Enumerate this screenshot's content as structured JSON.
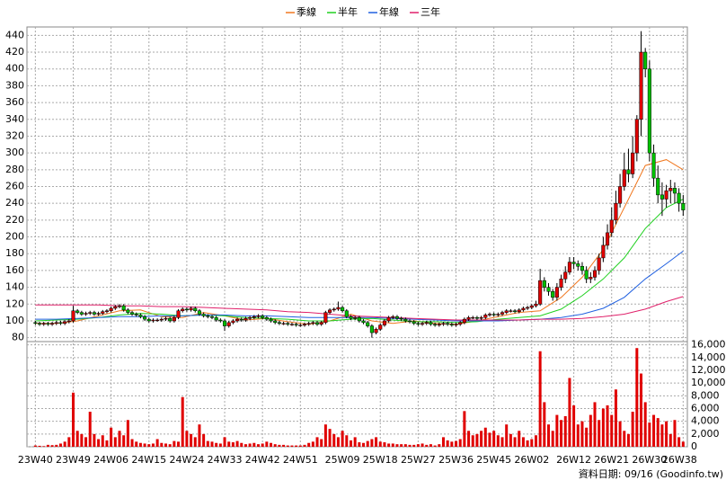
{
  "chart_data": {
    "type": "candlestick",
    "footer": "資料日期: 09/16 (Goodinfo.tw)",
    "xlim": [
      -2,
      155
    ],
    "xticks": [
      {
        "value": 0,
        "label": "23W40"
      },
      {
        "value": 9,
        "label": "23W49"
      },
      {
        "value": 18,
        "label": "24W06"
      },
      {
        "value": 27,
        "label": "24W15"
      },
      {
        "value": 36,
        "label": "24W24"
      },
      {
        "value": 45,
        "label": "24W33"
      },
      {
        "value": 54,
        "label": "24W42"
      },
      {
        "value": 63,
        "label": "24W51"
      },
      {
        "value": 73,
        "label": "25W09"
      },
      {
        "value": 82,
        "label": "25W18"
      },
      {
        "value": 91,
        "label": "25W27"
      },
      {
        "value": 100,
        "label": "25W36"
      },
      {
        "value": 109,
        "label": "25W45"
      },
      {
        "value": 118,
        "label": "26W02"
      },
      {
        "value": 128,
        "label": "26W12"
      },
      {
        "value": 137,
        "label": "26W21"
      },
      {
        "value": 146,
        "label": "26W30"
      },
      {
        "value": 154,
        "label": "26W38"
      }
    ],
    "ylim": [
      70,
      450
    ],
    "yticks": [
      80,
      100,
      120,
      140,
      160,
      180,
      200,
      220,
      240,
      260,
      280,
      300,
      320,
      340,
      360,
      380,
      400,
      420,
      440
    ],
    "y2lim": [
      0,
      16800
    ],
    "y2ticks": [
      0,
      {
        "value": 2000,
        "label": "2,000"
      },
      {
        "value": 4000,
        "label": "4,000"
      },
      {
        "value": 6000,
        "label": "6,000"
      },
      {
        "value": 8000,
        "label": "8,000"
      },
      {
        "value": 10000,
        "label": "10,000"
      },
      {
        "value": 12000,
        "label": "12,000"
      },
      {
        "value": 14000,
        "label": "14,000"
      },
      {
        "value": 16000,
        "label": "16,000"
      }
    ],
    "grid": true,
    "up_color": "#e00000",
    "down_color": "#00c000",
    "candles": {
      "open": [
        98,
        97,
        96,
        97,
        96,
        97,
        98,
        97,
        99,
        100,
        112,
        110,
        108,
        109,
        110,
        108,
        109,
        111,
        112,
        115,
        117,
        118,
        113,
        110,
        108,
        107,
        105,
        102,
        100,
        101,
        101,
        102,
        103,
        100,
        104,
        112,
        114,
        113,
        115,
        112,
        108,
        106,
        105,
        104,
        101,
        100,
        94,
        98,
        100,
        102,
        101,
        103,
        104,
        105,
        106,
        104,
        102,
        100,
        98,
        97,
        97,
        96,
        96,
        95,
        95,
        96,
        97,
        98,
        96,
        98,
        110,
        113,
        114,
        116,
        112,
        105,
        103,
        104,
        100,
        98,
        94,
        86,
        90,
        95,
        100,
        104,
        105,
        103,
        102,
        100,
        99,
        97,
        96,
        97,
        98,
        96,
        95,
        96,
        97,
        96,
        95,
        96,
        98,
        102,
        104,
        104,
        103,
        104,
        107,
        108,
        107,
        108,
        110,
        112,
        112,
        111,
        113,
        115,
        116,
        118,
        120,
        148,
        140,
        135,
        128,
        140,
        150,
        158,
        170,
        168,
        165,
        160,
        150,
        152,
        160,
        175,
        190,
        205,
        220,
        240,
        260,
        280,
        275,
        300,
        340,
        420,
        400,
        300,
        270,
        250,
        245,
        255,
        258,
        252,
        240
      ],
      "high": [
        100,
        99,
        99,
        99,
        99,
        100,
        100,
        101,
        102,
        118,
        114,
        112,
        111,
        112,
        112,
        111,
        113,
        114,
        117,
        119,
        120,
        120,
        115,
        112,
        110,
        109,
        107,
        104,
        103,
        103,
        104,
        105,
        105,
        106,
        114,
        116,
        116,
        117,
        117,
        114,
        110,
        108,
        107,
        106,
        103,
        102,
        100,
        102,
        104,
        104,
        105,
        106,
        107,
        108,
        108,
        106,
        104,
        102,
        100,
        99,
        99,
        98,
        98,
        97,
        98,
        99,
        100,
        100,
        100,
        112,
        115,
        116,
        123,
        118,
        114,
        107,
        106,
        106,
        102,
        100,
        96,
        92,
        97,
        102,
        106,
        107,
        107,
        105,
        104,
        102,
        101,
        99,
        99,
        100,
        100,
        98,
        98,
        99,
        99,
        98,
        98,
        100,
        104,
        106,
        106,
        106,
        106,
        109,
        110,
        110,
        110,
        112,
        114,
        114,
        114,
        115,
        117,
        118,
        120,
        124,
        162,
        152,
        145,
        138,
        145,
        155,
        165,
        176,
        176,
        172,
        170,
        165,
        158,
        165,
        180,
        200,
        215,
        235,
        255,
        275,
        300,
        305,
        320,
        345,
        445,
        425,
        410,
        310,
        285,
        265,
        262,
        268,
        265,
        258,
        250
      ],
      "low": [
        95,
        94,
        94,
        94,
        94,
        95,
        95,
        95,
        97,
        98,
        108,
        106,
        106,
        107,
        106,
        106,
        107,
        109,
        110,
        113,
        115,
        111,
        108,
        106,
        105,
        103,
        100,
        98,
        98,
        99,
        99,
        100,
        98,
        98,
        102,
        110,
        111,
        111,
        110,
        106,
        104,
        103,
        102,
        99,
        98,
        88,
        92,
        96,
        98,
        99,
        99,
        101,
        102,
        103,
        102,
        100,
        98,
        96,
        95,
        95,
        94,
        94,
        93,
        93,
        93,
        94,
        95,
        94,
        94,
        96,
        108,
        111,
        112,
        110,
        103,
        101,
        101,
        98,
        96,
        92,
        80,
        84,
        88,
        93,
        98,
        102,
        101,
        100,
        98,
        97,
        95,
        94,
        94,
        95,
        94,
        93,
        93,
        94,
        94,
        93,
        93,
        94,
        96,
        100,
        102,
        101,
        101,
        102,
        105,
        105,
        105,
        106,
        108,
        110,
        109,
        109,
        111,
        113,
        114,
        116,
        118,
        135,
        130,
        124,
        124,
        136,
        145,
        155,
        162,
        160,
        155,
        145,
        145,
        148,
        155,
        170,
        185,
        200,
        215,
        235,
        255,
        265,
        270,
        290,
        320,
        390,
        290,
        260,
        240,
        225,
        235,
        240,
        240,
        230,
        225
      ],
      "close": [
        97,
        96,
        97,
        96,
        97,
        98,
        97,
        99,
        100,
        112,
        110,
        108,
        109,
        110,
        108,
        109,
        111,
        112,
        115,
        117,
        118,
        113,
        110,
        108,
        107,
        105,
        102,
        100,
        101,
        101,
        102,
        103,
        100,
        104,
        112,
        114,
        113,
        115,
        112,
        108,
        106,
        105,
        104,
        101,
        100,
        94,
        98,
        100,
        102,
        101,
        103,
        104,
        105,
        106,
        104,
        102,
        100,
        98,
        97,
        97,
        96,
        96,
        95,
        95,
        96,
        97,
        98,
        96,
        98,
        110,
        113,
        114,
        116,
        112,
        105,
        103,
        104,
        100,
        98,
        94,
        86,
        90,
        95,
        100,
        104,
        105,
        103,
        102,
        100,
        99,
        97,
        96,
        97,
        98,
        96,
        95,
        96,
        97,
        96,
        95,
        96,
        98,
        102,
        104,
        104,
        103,
        104,
        107,
        108,
        107,
        108,
        110,
        112,
        112,
        111,
        113,
        115,
        116,
        118,
        120,
        148,
        140,
        135,
        128,
        140,
        150,
        158,
        170,
        168,
        165,
        160,
        150,
        152,
        160,
        175,
        190,
        205,
        220,
        240,
        260,
        280,
        275,
        300,
        340,
        420,
        400,
        300,
        270,
        250,
        245,
        255,
        258,
        252,
        240,
        232
      ]
    },
    "volume": {
      "color": "#e00000",
      "values": [
        200,
        150,
        100,
        300,
        250,
        300,
        500,
        800,
        1500,
        8500,
        2500,
        2000,
        1500,
        5500,
        2000,
        1200,
        1800,
        1000,
        3000,
        1500,
        2500,
        1800,
        4200,
        1200,
        800,
        600,
        500,
        400,
        500,
        1200,
        600,
        500,
        400,
        900,
        800,
        7800,
        2500,
        2000,
        1500,
        3500,
        2000,
        900,
        800,
        600,
        500,
        1500,
        800,
        700,
        900,
        600,
        400,
        500,
        600,
        400,
        500,
        800,
        600,
        400,
        300,
        300,
        200,
        200,
        200,
        200,
        300,
        600,
        800,
        1500,
        1200,
        3500,
        2800,
        2000,
        1500,
        2500,
        1800,
        1000,
        1500,
        700,
        600,
        900,
        1200,
        1500,
        800,
        700,
        500,
        500,
        400,
        400,
        400,
        300,
        300,
        400,
        500,
        300,
        400,
        200,
        400,
        1500,
        1000,
        800,
        900,
        1200,
        5600,
        2500,
        1800,
        2000,
        2500,
        3000,
        2200,
        2500,
        1800,
        1500,
        3500,
        2000,
        1500,
        2500,
        1500,
        1000,
        1200,
        1800,
        15000,
        7000,
        3500,
        2500,
        5000,
        4200,
        4800,
        10800,
        6500,
        3500,
        4000,
        3000,
        5000,
        7000,
        4200,
        6000,
        6500,
        5000,
        9000,
        4000,
        2500,
        2000,
        5500,
        15500,
        11500,
        7000,
        3800,
        5000,
        4500,
        3500,
        4000,
        2000,
        4200,
        1500,
        800
      ]
    },
    "ma_x": [
      0,
      5,
      10,
      15,
      20,
      25,
      30,
      35,
      40,
      45,
      50,
      55,
      60,
      65,
      70,
      75,
      80,
      85,
      90,
      95,
      100,
      105,
      110,
      115,
      120,
      125,
      130,
      135,
      140,
      145,
      150,
      154
    ],
    "series": [
      {
        "name": "季線",
        "color": "#f07820",
        "values": [
          97,
          97,
          100,
          106,
          112,
          113,
          105,
          104,
          110,
          106,
          101,
          103,
          99,
          96,
          100,
          108,
          100,
          97,
          100,
          97,
          96,
          100,
          105,
          110,
          112,
          128,
          152,
          185,
          235,
          285,
          292,
          280
        ]
      },
      {
        "name": "半年",
        "color": "#20d020",
        "values": [
          100,
          101,
          102,
          104,
          107,
          109,
          108,
          106,
          107,
          106,
          104,
          103,
          102,
          100,
          100,
          102,
          103,
          101,
          99,
          99,
          98,
          99,
          102,
          104,
          106,
          114,
          130,
          150,
          175,
          210,
          235,
          245
        ]
      },
      {
        "name": "年線",
        "color": "#2060e0",
        "values": [
          102,
          102,
          103,
          104,
          105,
          105,
          106,
          106,
          107,
          107,
          106,
          106,
          105,
          104,
          104,
          104,
          104,
          103,
          102,
          101,
          100,
          100,
          100,
          101,
          102,
          104,
          108,
          115,
          128,
          150,
          168,
          183
        ]
      },
      {
        "name": "三年",
        "color": "#e0206a",
        "values": [
          119,
          119,
          119,
          119,
          118,
          118,
          117,
          117,
          116,
          115,
          114,
          113,
          111,
          110,
          108,
          106,
          105,
          104,
          103,
          102,
          101,
          101,
          101,
          101,
          102,
          102,
          103,
          105,
          108,
          114,
          123,
          129
        ]
      }
    ]
  }
}
